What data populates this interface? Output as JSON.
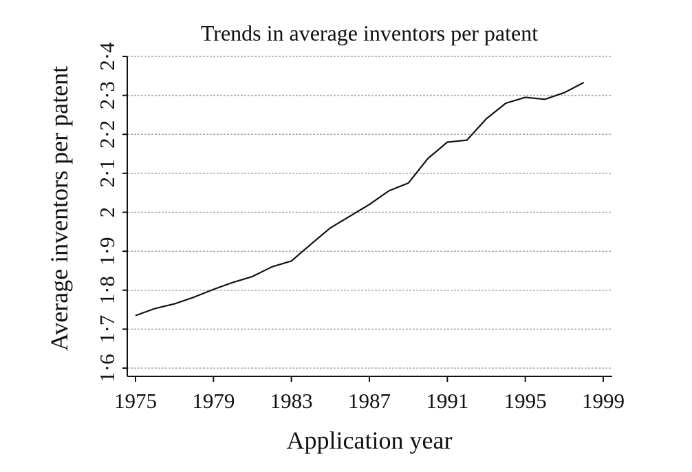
{
  "chart_data": {
    "type": "line",
    "title": "Trends in average inventors per patent",
    "xlabel": "Application year",
    "ylabel": "Average inventors per patent",
    "xlim": [
      1975,
      1999
    ],
    "ylim": [
      1.6,
      2.4
    ],
    "x_ticks": [
      1975,
      1979,
      1983,
      1987,
      1991,
      1995,
      1999
    ],
    "x_tick_labels": [
      "1975",
      "1979",
      "1983",
      "1987",
      "1991",
      "1995",
      "1999"
    ],
    "y_ticks": [
      1.6,
      1.7,
      1.8,
      1.9,
      2.0,
      2.1,
      2.2,
      2.3,
      2.4
    ],
    "y_tick_labels": [
      "1·6",
      "1·7",
      "1·8",
      "1·9",
      "2",
      "2·1",
      "2·2",
      "2·3",
      "2·4"
    ],
    "grid": true,
    "series": [
      {
        "x": [
          1975,
          1976,
          1977,
          1978,
          1979,
          1980,
          1981,
          1982,
          1983,
          1984,
          1985,
          1986,
          1987,
          1988,
          1989,
          1990,
          1991,
          1992,
          1993,
          1994,
          1995,
          1996,
          1997,
          1998
        ],
        "values": [
          1.735,
          1.753,
          1.765,
          1.782,
          1.802,
          1.82,
          1.835,
          1.86,
          1.875,
          1.918,
          1.96,
          1.99,
          2.02,
          2.055,
          2.075,
          2.138,
          2.18,
          2.185,
          2.24,
          2.28,
          2.295,
          2.29,
          2.307,
          2.333
        ]
      }
    ]
  },
  "colors": {
    "line": "#111111",
    "grid": "#a8a8a8",
    "background": "#ffffff"
  }
}
